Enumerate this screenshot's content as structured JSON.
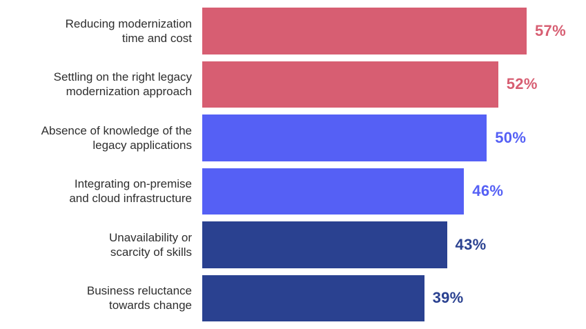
{
  "chart_data": {
    "type": "bar",
    "orientation": "horizontal",
    "unit": "%",
    "xlim": [
      0,
      60
    ],
    "grid": false,
    "legend": false,
    "background": "#FFFFFF",
    "label_color": "#2E2E2E",
    "categories": [
      "Reducing modernization\ntime and cost",
      "Settling on the right legacy\nmodernization approach",
      "Absence of knowledge of the\nlegacy applications",
      "Integrating on-premise\nand cloud infrastructure",
      "Unavailability or\nscarcity of skills",
      "Business reluctance\ntowards change"
    ],
    "values": [
      57,
      52,
      50,
      46,
      43,
      39
    ],
    "value_labels": [
      "57%",
      "52%",
      "50%",
      "46%",
      "43%",
      "39%"
    ],
    "bar_colors": [
      "#D75E72",
      "#D75E72",
      "#5560F5",
      "#5560F5",
      "#2A4190",
      "#2A4190"
    ]
  }
}
